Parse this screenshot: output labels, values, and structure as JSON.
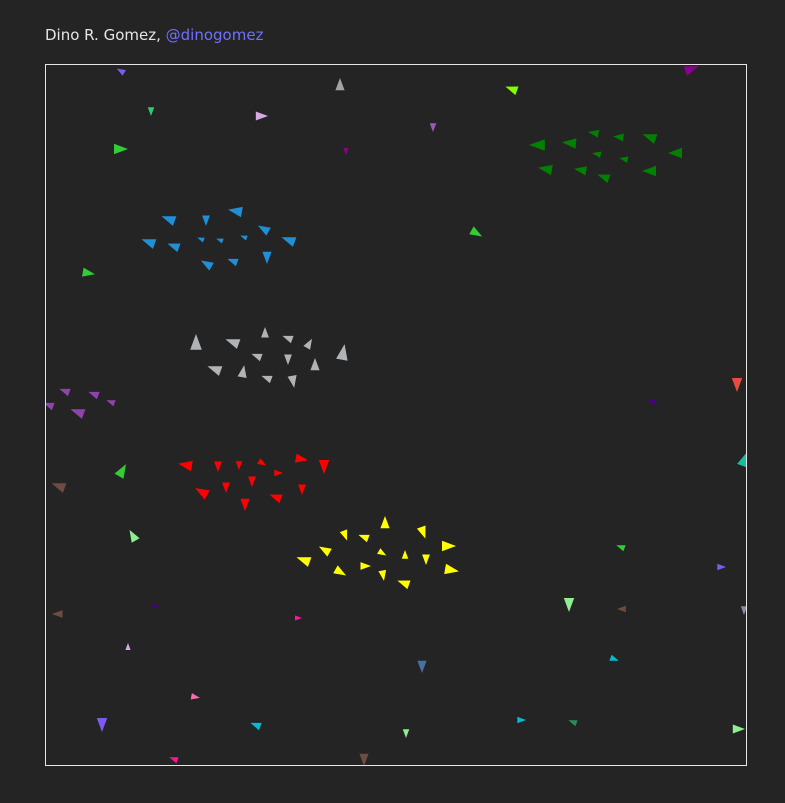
{
  "author": {
    "name": "Dino R. Gomez",
    "separator": ", ",
    "handle": "@dinogomez"
  },
  "flocks": [
    {
      "color": "#1f8fd6",
      "count": 14
    },
    {
      "color": "#008000",
      "count": 13
    },
    {
      "color": "#b0b4b6",
      "count": 14
    },
    {
      "color": "#8e44ad",
      "count": 6
    },
    {
      "color": "#ff0000",
      "count": 13
    },
    {
      "color": "#ffff00",
      "count": 15
    }
  ],
  "stray_colors": [
    "#7f5af0",
    "#2ecc71",
    "#d7a7e6",
    "#a3a3a3",
    "#9b59b6",
    "#7fff00",
    "#8b008b",
    "#32cd32",
    "#e74c3c",
    "#1abc9c",
    "#6d4c41",
    "#90ee90",
    "#4b0082",
    "#ff69b4",
    "#ff1493",
    "#4a6fa5",
    "#00bcd4",
    "#2e8b57",
    "#8a8aa0",
    "#c71585"
  ]
}
